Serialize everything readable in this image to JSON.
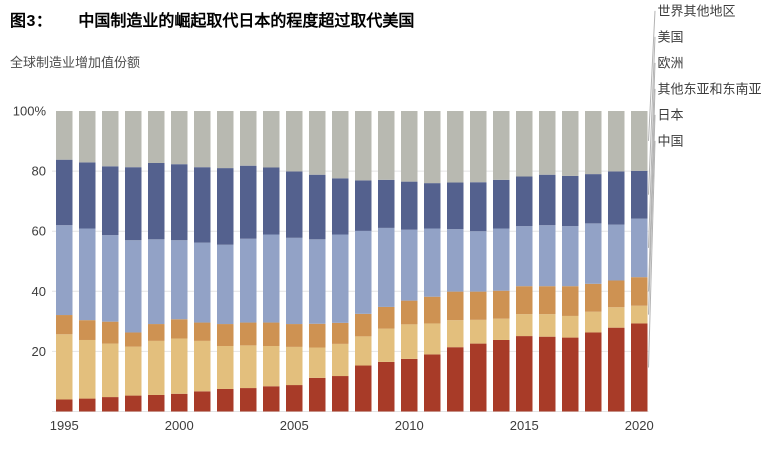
{
  "header": {
    "figure_label": "图3：",
    "title": "中国制造业的崛起取代日本的程度超过取代美国",
    "subtitle": "全球制造业增加值份额"
  },
  "chart_data": {
    "type": "bar",
    "stacked": true,
    "unit": "percent share",
    "title": "图3： 中国制造业的崛起取代日本的程度超过取代美国",
    "subtitle": "全球制造业增加值份额",
    "x": [
      1995,
      1996,
      1997,
      1998,
      1999,
      2000,
      2001,
      2002,
      2003,
      2004,
      2005,
      2006,
      2007,
      2008,
      2009,
      2010,
      2011,
      2012,
      2013,
      2014,
      2015,
      2016,
      2017,
      2018,
      2019,
      2020
    ],
    "x_tick_labels": [
      "1995",
      "2000",
      "2005",
      "2010",
      "2015",
      "2020"
    ],
    "y_ticks": [
      0,
      20,
      40,
      60,
      80,
      100
    ],
    "y_tick_labels": [
      "",
      "20",
      "40",
      "60",
      "80",
      "100%"
    ],
    "ylim": [
      0,
      100
    ],
    "grid": "horizontal, 20% steps, drawn behind bars",
    "legend_position": "right of last bar, leader lines to 2020 segments",
    "series": [
      {
        "name": "中国",
        "color": "#a83b28",
        "values": [
          4.0,
          4.3,
          4.8,
          5.3,
          5.5,
          5.9,
          6.7,
          7.5,
          7.8,
          8.4,
          8.8,
          11.2,
          11.8,
          15.3,
          16.5,
          17.5,
          19.0,
          21.4,
          22.6,
          23.8,
          25.1,
          24.9,
          24.6,
          26.3,
          27.9,
          29.3
        ]
      },
      {
        "name": "日本",
        "color": "#e3bf7d",
        "values": [
          21.7,
          19.5,
          17.8,
          16.3,
          18.0,
          18.4,
          16.8,
          14.3,
          14.2,
          13.4,
          12.7,
          10.1,
          10.7,
          9.7,
          11.1,
          11.5,
          10.3,
          9.0,
          7.9,
          7.1,
          7.3,
          7.5,
          7.2,
          6.9,
          6.8,
          5.9
        ]
      },
      {
        "name": "其他东亚和东南亚",
        "color": "#ce9252",
        "values": [
          6.4,
          6.6,
          7.3,
          4.7,
          5.6,
          6.4,
          6.1,
          7.3,
          7.6,
          7.8,
          7.6,
          7.9,
          7.0,
          7.5,
          7.2,
          7.9,
          8.9,
          9.5,
          9.4,
          9.3,
          9.3,
          9.3,
          9.9,
          9.3,
          8.9,
          9.5
        ]
      },
      {
        "name": "欧洲",
        "color": "#92a2c6",
        "values": [
          29.9,
          30.5,
          28.8,
          30.7,
          28.2,
          26.3,
          26.6,
          26.4,
          27.9,
          29.3,
          28.7,
          28.1,
          29.4,
          27.6,
          26.3,
          23.6,
          22.7,
          20.8,
          20.1,
          20.7,
          20.0,
          20.3,
          20.0,
          20.1,
          18.6,
          19.5
        ]
      },
      {
        "name": "美国",
        "color": "#54618e",
        "values": [
          21.8,
          22.0,
          22.9,
          24.3,
          25.4,
          25.3,
          25.1,
          25.5,
          24.3,
          22.3,
          22.1,
          21.5,
          18.7,
          16.8,
          16.0,
          16.0,
          15.1,
          15.5,
          16.3,
          16.2,
          16.5,
          16.8,
          16.7,
          16.4,
          17.7,
          15.9
        ]
      },
      {
        "name": "世界其他地区",
        "color": "#b8b9b1",
        "values": [
          16.2,
          17.1,
          18.4,
          18.7,
          17.3,
          17.7,
          18.7,
          19.0,
          18.2,
          18.8,
          20.1,
          21.2,
          22.4,
          23.1,
          22.9,
          23.5,
          24.0,
          23.8,
          23.7,
          22.9,
          21.8,
          21.2,
          21.6,
          21.0,
          20.1,
          19.9
        ]
      }
    ],
    "legend_entries_top_to_bottom": [
      "世界其他地区",
      "美国",
      "欧洲",
      "其他东亚和东南亚",
      "日本",
      "中国"
    ]
  },
  "colors": {
    "china": "#a83b28",
    "japan": "#e3bf7d",
    "other_east_asia": "#ce9252",
    "europe": "#92a2c6",
    "us": "#54618e",
    "rest_of_world": "#b8b9b1",
    "gridline": "#e4e4e4",
    "axis_text": "#3d3d3d",
    "leader_line": "#b3b3b3",
    "subtitle_text": "#4d4d4d"
  }
}
